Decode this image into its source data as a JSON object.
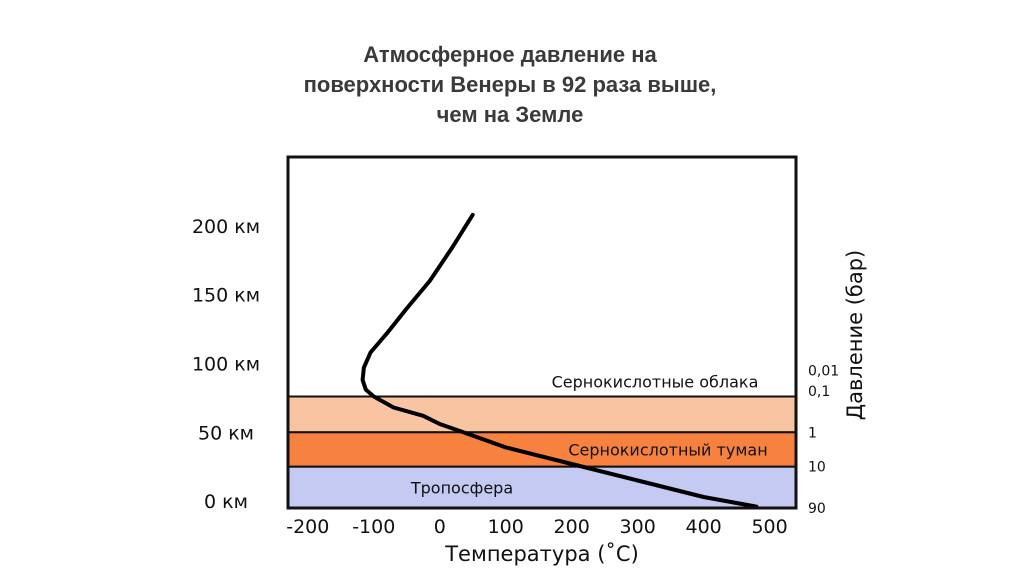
{
  "chart_data": {
    "type": "line",
    "title_lines": [
      "Атмосферное давление на",
      "поверхности Венеры в 92 раза выше,",
      "чем на Земле"
    ],
    "xlabel": "Температура (˚С)",
    "ylabel_right": "Давление (бар)",
    "xlim": [
      -230,
      540
    ],
    "ylim": [
      -5,
      250
    ],
    "x_ticks": [
      {
        "value": -200,
        "label": "-200"
      },
      {
        "value": -100,
        "label": "-100"
      },
      {
        "value": 0,
        "label": "0"
      },
      {
        "value": 100,
        "label": "100"
      },
      {
        "value": 200,
        "label": "200"
      },
      {
        "value": 300,
        "label": "300"
      },
      {
        "value": 400,
        "label": "400"
      },
      {
        "value": 500,
        "label": "500"
      }
    ],
    "y_ticks": [
      {
        "value": 0,
        "label": "0 км"
      },
      {
        "value": 50,
        "label": "50 км"
      },
      {
        "value": 100,
        "label": "100 км"
      },
      {
        "value": 150,
        "label": "150 км"
      },
      {
        "value": 200,
        "label": "200 км"
      }
    ],
    "pressure_ticks": [
      {
        "altitude": 95,
        "label": "0,01"
      },
      {
        "altitude": 80,
        "label": "0,1"
      },
      {
        "altitude": 50,
        "label": "1"
      },
      {
        "altitude": 25,
        "label": "10"
      },
      {
        "altitude": -5,
        "label": "90"
      }
    ],
    "bands": [
      {
        "name": "Сернокислотные облака",
        "from": 50,
        "to": 76,
        "color": "#f8c4a2"
      },
      {
        "name": "Сернокислотный туман",
        "from": 25,
        "to": 50,
        "color": "#f7813f"
      },
      {
        "name": "Тропосфера",
        "from": -5,
        "to": 25,
        "color": "#c5caf2"
      }
    ],
    "series": [
      {
        "x": [
          50,
          20,
          -15,
          -50,
          -80,
          -105,
          -115,
          -117,
          -112,
          -100,
          -70,
          -25,
          0,
          30,
          100,
          200,
          300,
          400,
          480
        ],
        "y": [
          208,
          185,
          160,
          140,
          122,
          108,
          97,
          88,
          81,
          76,
          68,
          62,
          56,
          51,
          39,
          27,
          15,
          3,
          -4
        ]
      }
    ],
    "grid": false,
    "legend": "none"
  }
}
